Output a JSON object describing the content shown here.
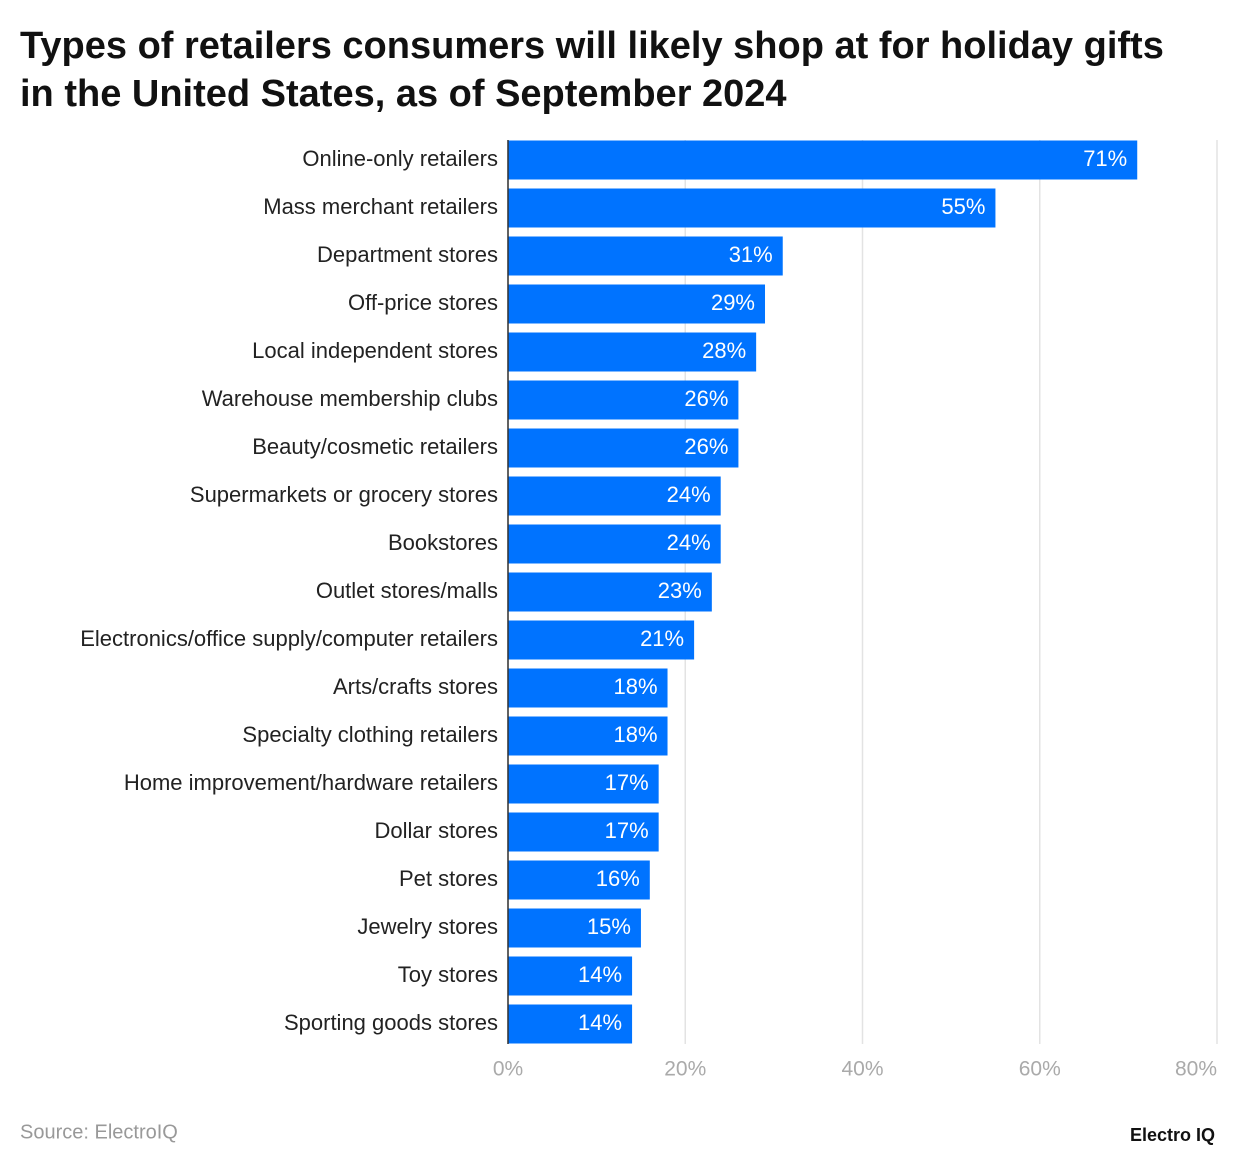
{
  "chart_data": {
    "type": "bar",
    "orientation": "horizontal",
    "title": "Types of retailers consumers will likely shop at for holiday gifts in the United States, as of September 2024",
    "categories": [
      "Online-only retailers",
      "Mass merchant retailers",
      "Department stores",
      "Off-price stores",
      "Local independent stores",
      "Warehouse membership clubs",
      "Beauty/cosmetic retailers",
      "Supermarkets or grocery stores",
      "Bookstores",
      "Outlet stores/malls",
      "Electronics/office supply/computer retailers",
      "Arts/crafts stores",
      "Specialty clothing retailers",
      "Home improvement/hardware retailers",
      "Dollar stores",
      "Pet stores",
      "Jewelry stores",
      "Toy stores",
      "Sporting goods stores"
    ],
    "values": [
      71,
      55,
      31,
      29,
      28,
      26,
      26,
      24,
      24,
      23,
      21,
      18,
      18,
      17,
      17,
      16,
      15,
      14,
      14
    ],
    "value_labels": [
      "71%",
      "55%",
      "31%",
      "29%",
      "28%",
      "26%",
      "26%",
      "24%",
      "24%",
      "23%",
      "21%",
      "18%",
      "18%",
      "17%",
      "17%",
      "16%",
      "15%",
      "14%",
      "14%"
    ],
    "color": "#0073ff",
    "xlim": [
      0,
      80
    ],
    "xticks": [
      {
        "value": 0,
        "label": "0%"
      },
      {
        "value": 20,
        "label": "20%"
      },
      {
        "value": 40,
        "label": "40%"
      },
      {
        "value": 60,
        "label": "60%"
      },
      {
        "value": 80,
        "label": "80%"
      }
    ],
    "grid": true,
    "source": "Source: ElectroIQ",
    "logo": "Electro IQ"
  }
}
